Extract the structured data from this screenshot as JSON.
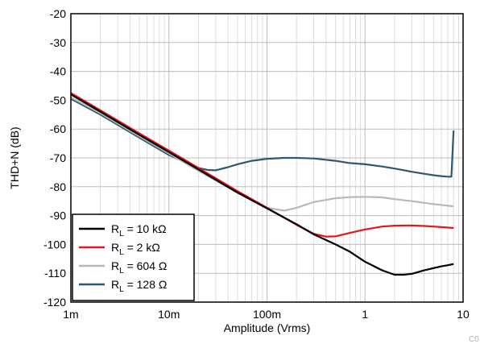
{
  "chart_data": {
    "type": "line",
    "title": "",
    "xlabel": "Amplitude (Vrms)",
    "ylabel": "THD+N (dB)",
    "x_scale": "log",
    "xlim": [
      0.001,
      10
    ],
    "ylim": [
      -120,
      -20
    ],
    "grid": true,
    "x_ticks": [
      {
        "value": 0.001,
        "label": "1m"
      },
      {
        "value": 0.01,
        "label": "10m"
      },
      {
        "value": 0.1,
        "label": "100m"
      },
      {
        "value": 1,
        "label": "1"
      },
      {
        "value": 10,
        "label": "10"
      }
    ],
    "y_ticks": [
      -120,
      -110,
      -100,
      -90,
      -80,
      -70,
      -60,
      -50,
      -40,
      -30,
      -20
    ],
    "legend_position": "bottom-left",
    "series": [
      {
        "name_main": "R",
        "name_sub": "L",
        "name_rest": " = 10 kΩ",
        "color": "#000000",
        "x": [
          0.001,
          0.002,
          0.005,
          0.01,
          0.02,
          0.05,
          0.1,
          0.2,
          0.3,
          0.5,
          0.7,
          1.0,
          1.5,
          2.0,
          2.5,
          3.0,
          4.0,
          5.0,
          6.0,
          7.0,
          8.0
        ],
        "y": [
          -48,
          -54,
          -62,
          -68,
          -74,
          -82,
          -87.5,
          -93,
          -96.5,
          -100,
          -102.5,
          -106,
          -109,
          -110.5,
          -110.5,
          -110.2,
          -109,
          -108.2,
          -107.6,
          -107.2,
          -106.8
        ]
      },
      {
        "name_main": "R",
        "name_sub": "L",
        "name_rest": " = 2 kΩ",
        "color": "#e8141c",
        "x": [
          0.001,
          0.002,
          0.005,
          0.01,
          0.02,
          0.05,
          0.1,
          0.2,
          0.3,
          0.4,
          0.5,
          0.7,
          1.0,
          1.5,
          2.0,
          3.0,
          4.0,
          5.0,
          6.0,
          8.0
        ],
        "y": [
          -47.5,
          -53.5,
          -61.5,
          -67.5,
          -73.5,
          -81.5,
          -87.3,
          -93.2,
          -96.3,
          -97.3,
          -97.2,
          -96,
          -94.8,
          -93.8,
          -93.5,
          -93.4,
          -93.6,
          -93.8,
          -94,
          -94.3
        ]
      },
      {
        "name_main": "R",
        "name_sub": "L",
        "name_rest": " = 604 Ω",
        "color": "#b8b8b8",
        "x": [
          0.001,
          0.002,
          0.005,
          0.01,
          0.02,
          0.05,
          0.1,
          0.15,
          0.2,
          0.3,
          0.5,
          0.7,
          1.0,
          1.5,
          2.0,
          3.0,
          5.0,
          8.0
        ],
        "y": [
          -49,
          -54.5,
          -62.5,
          -68.5,
          -74.5,
          -82,
          -87.3,
          -88.3,
          -87.3,
          -85.3,
          -84,
          -83.6,
          -83.5,
          -83.7,
          -84.3,
          -85,
          -86,
          -86.8
        ]
      },
      {
        "name_main": "R",
        "name_sub": "L",
        "name_rest": " = 128 Ω",
        "color": "#2e5871",
        "x": [
          0.001,
          0.002,
          0.005,
          0.01,
          0.02,
          0.025,
          0.03,
          0.04,
          0.05,
          0.07,
          0.1,
          0.15,
          0.2,
          0.3,
          0.5,
          0.7,
          1.0,
          1.5,
          2.0,
          3.0,
          4.0,
          5.0,
          6.0,
          7.0,
          7.6,
          8.0
        ],
        "y": [
          -49.5,
          -55,
          -63,
          -69,
          -73.5,
          -74.2,
          -74.3,
          -73.2,
          -72.2,
          -71,
          -70.3,
          -70,
          -70,
          -70.2,
          -71,
          -71.8,
          -72.2,
          -73,
          -73.7,
          -74.8,
          -75.5,
          -76,
          -76.3,
          -76.5,
          -76.5,
          -60.5
        ]
      }
    ]
  },
  "watermark": "C0"
}
